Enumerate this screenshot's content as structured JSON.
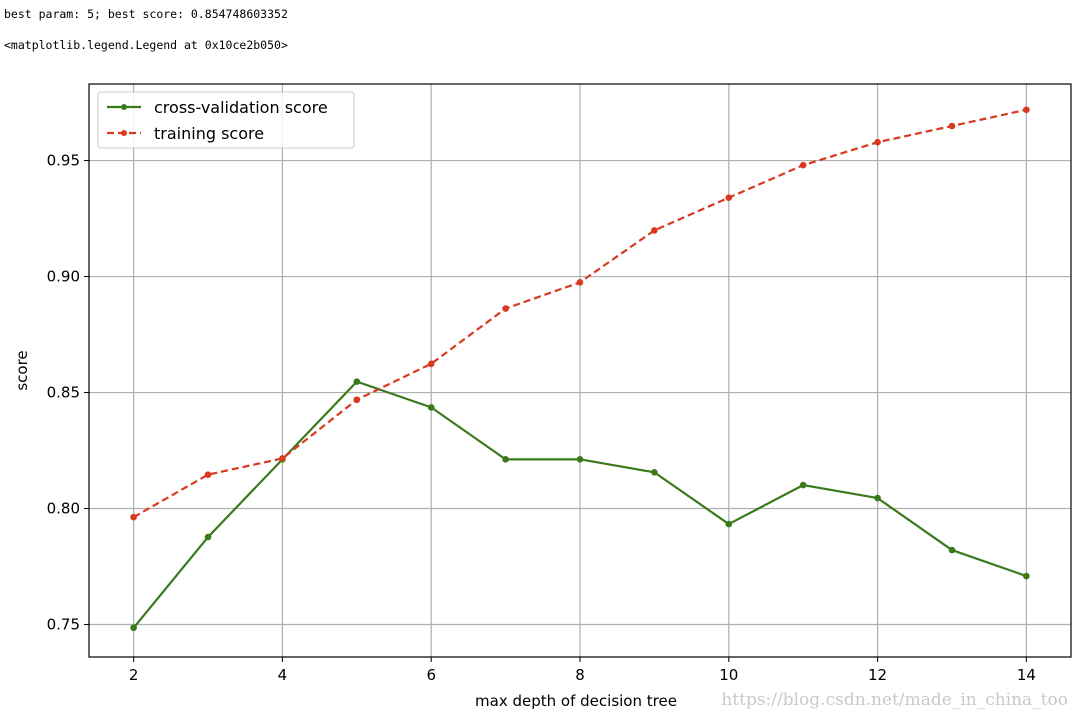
{
  "console": {
    "line1": "best param: 5; best score: 0.854748603352",
    "line2": "<matplotlib.legend.Legend at 0x10ce2b050>"
  },
  "watermark": "https://blog.csdn.net/made_in_china_too",
  "chart_data": {
    "type": "line",
    "title": "",
    "xlabel": "max depth of decision tree",
    "ylabel": "score",
    "xlim": [
      1.4,
      14.6
    ],
    "ylim": [
      0.736,
      0.983
    ],
    "xticks": [
      2,
      4,
      6,
      8,
      10,
      12,
      14
    ],
    "yticks": [
      0.75,
      0.8,
      0.85,
      0.9,
      0.95
    ],
    "ytick_labels": [
      "0.75",
      "0.80",
      "0.85",
      "0.90",
      "0.95"
    ],
    "grid": true,
    "legend_position": "top-left",
    "x": [
      2,
      3,
      4,
      5,
      6,
      7,
      8,
      9,
      10,
      11,
      12,
      13,
      14
    ],
    "series": [
      {
        "name": "cross-validation score",
        "style": "solid",
        "color": "#3a7a1b",
        "values": [
          0.7486,
          0.7877,
          0.8212,
          0.8547,
          0.8436,
          0.8212,
          0.8212,
          0.8156,
          0.7933,
          0.8101,
          0.8045,
          0.7821,
          0.7709
        ]
      },
      {
        "name": "training score",
        "style": "dashed",
        "color": "#d9391f",
        "values": [
          0.7963,
          0.8146,
          0.8216,
          0.8469,
          0.8624,
          0.8862,
          0.8975,
          0.9199,
          0.934,
          0.948,
          0.9579,
          0.9649,
          0.9719
        ]
      }
    ]
  }
}
